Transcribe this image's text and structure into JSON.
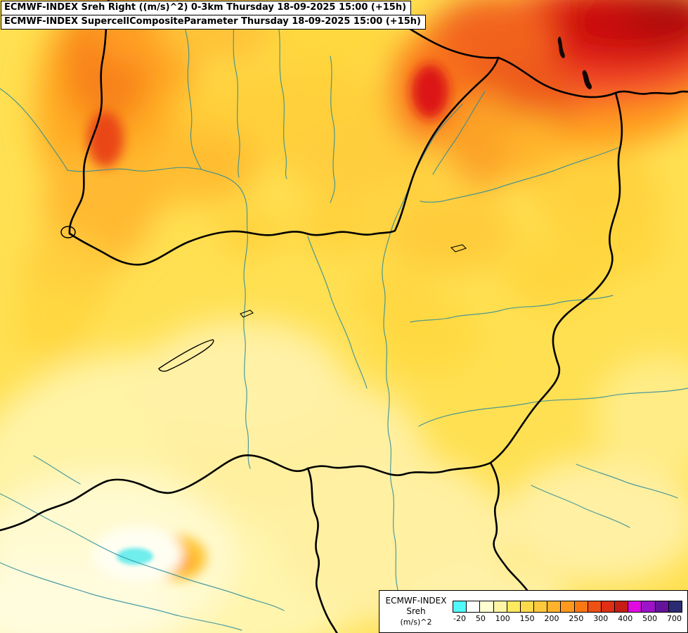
{
  "titles": {
    "line1": "ECMWF-INDEX Sreh Right ((m/s)^2) 0-3km Thursday 18-09-2025 15:00 (+15h)",
    "line2": "ECMWF-INDEX SupercellCompositeParameter Thursday 18-09-2025 15:00 (+15h)"
  },
  "legend": {
    "model": "ECMWF-INDEX",
    "parameter": "Sreh",
    "unit": "(m/s)^2",
    "ticks": [
      "-20",
      "50",
      "100",
      "150",
      "200",
      "250",
      "300",
      "400",
      "500",
      "700"
    ],
    "palette": [
      "#50FAFA",
      "#FFFFFF",
      "#FFFFD2",
      "#FFF5A5",
      "#FFE95F",
      "#FFDB4B",
      "#FFC93C",
      "#FFB32D",
      "#FF991E",
      "#F97814",
      "#EF5014",
      "#E02F14",
      "#C61E14",
      "#E10AE1",
      "#9B14C8",
      "#64149B",
      "#2B2B73"
    ]
  },
  "map": {
    "base_color": "#FFE052",
    "border_color": "#000000",
    "river_color": "#2E8B9A",
    "cyan_spot_color": "#6FEDED",
    "hotspot_color": "#C80F0F"
  }
}
